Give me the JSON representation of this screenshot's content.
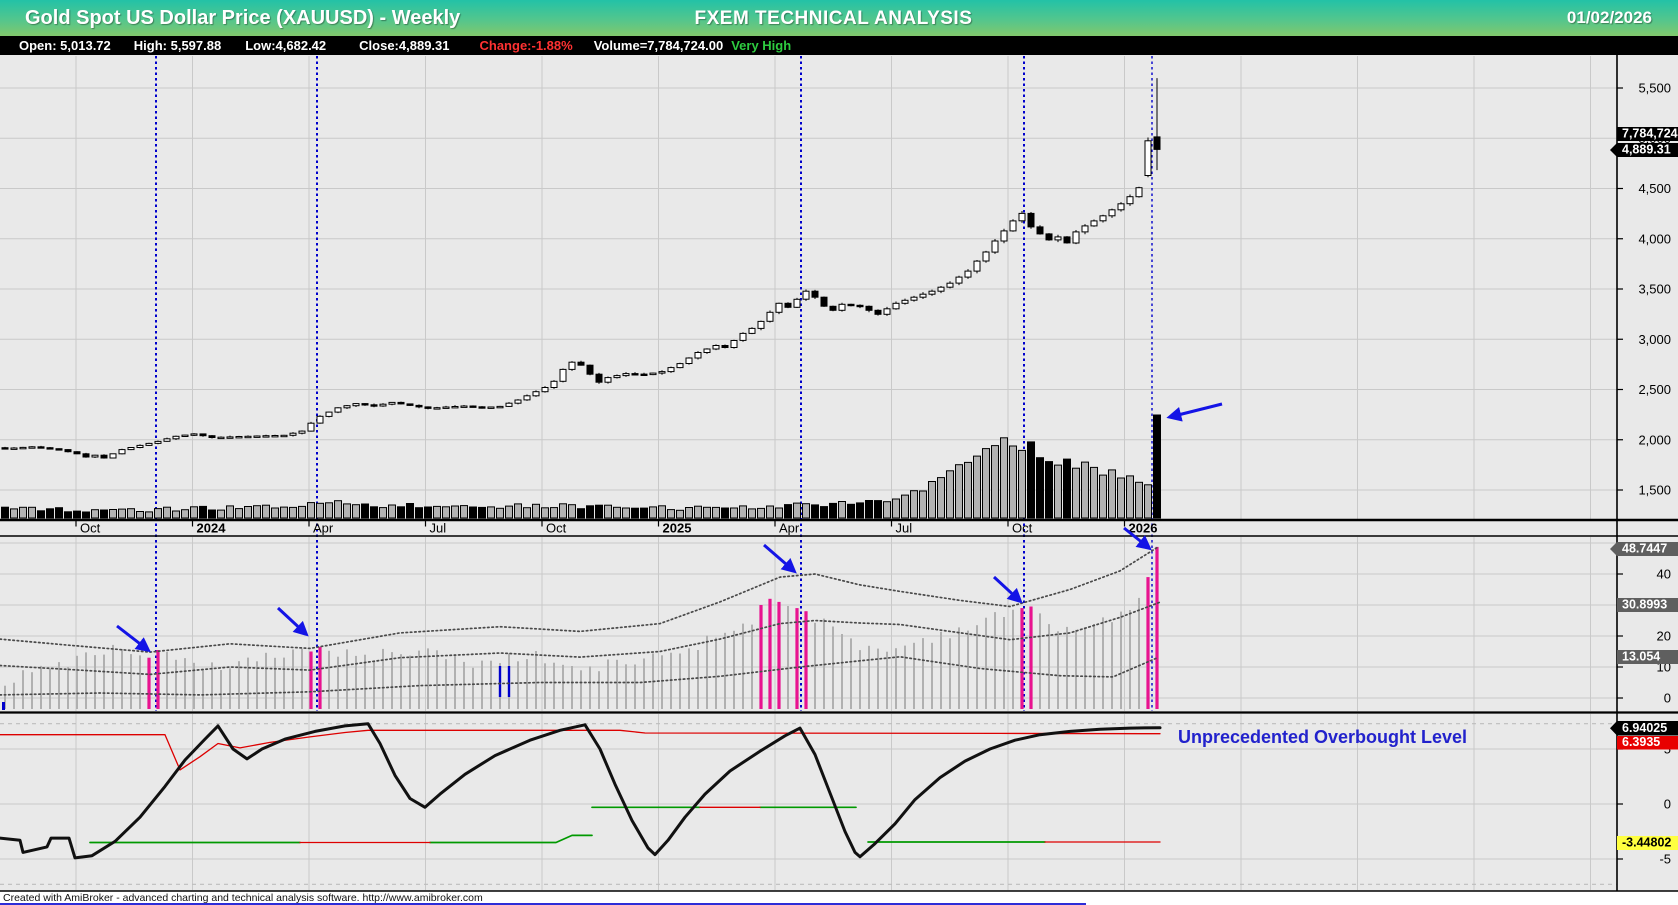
{
  "header": {
    "title": "Gold Spot US Dollar Price (XAUUSD) - Weekly",
    "center_title": "FXEM TECHNICAL ANALYSIS",
    "date": "01/02/2026"
  },
  "quote_bar": {
    "items": [
      {
        "text": "Open: 5,013.72"
      },
      {
        "text": "High: 5,597.88"
      },
      {
        "text": "Low:4,682.42"
      },
      {
        "text": "Close:4,889.31"
      },
      {
        "text": "Change:-1.88%"
      },
      {
        "text": "Volume=7,784,724.00"
      },
      {
        "text": "Very High"
      }
    ]
  },
  "footer": {
    "credit": "Created with AmiBroker - advanced charting and technical analysis software. http://www.amibroker.com"
  },
  "chart_data": {
    "type": "candlestick",
    "title": "Gold Spot US Dollar Price (XAUUSD) - Weekly",
    "x_axis": {
      "labels": [
        "Oct",
        "2024",
        "Apr",
        "Jul",
        "Oct",
        "2025",
        "Apr",
        "Jul",
        "Oct",
        "2026"
      ],
      "bold": [
        false,
        true,
        false,
        false,
        false,
        true,
        false,
        false,
        false,
        true
      ],
      "tick_x": [
        76,
        192.5,
        309,
        425.5,
        542,
        658.5,
        775,
        891.5,
        1008,
        1124.5
      ],
      "grid_step": 116.5,
      "grid_count": 14
    },
    "price_axis": {
      "tick_labels": [
        "5,500",
        "5,000",
        "4,500",
        "4,000",
        "3,500",
        "3,000",
        "2,500",
        "2,000",
        "1,500"
      ],
      "tick_values": [
        5500,
        5000,
        4500,
        4000,
        3500,
        3000,
        2500,
        2000,
        1500
      ],
      "range": [
        1350,
        5850
      ]
    },
    "last_bar": {
      "open": 5013.72,
      "high": 5597.88,
      "low": 4682.42,
      "close": 4889.31,
      "volume": 7784724
    },
    "badges": {
      "volume": "7,784,724",
      "close": "4,889.31",
      "band_upper": "48.7447",
      "band_middle": "30.8993",
      "band_lower": "13.054",
      "osc_main": "6.94025",
      "osc_signal": "6.3935",
      "osc_stop": "-3.44802"
    },
    "price_keypoints_weekly": [
      [
        0,
        1912
      ],
      [
        3,
        1930
      ],
      [
        6,
        1902
      ],
      [
        8,
        1860
      ],
      [
        9,
        1828
      ],
      [
        10,
        1846
      ],
      [
        11,
        1818
      ],
      [
        13,
        1902
      ],
      [
        15,
        1944
      ],
      [
        17,
        1984
      ],
      [
        19,
        2034
      ],
      [
        21,
        2058
      ],
      [
        23,
        2022
      ],
      [
        26,
        2032
      ],
      [
        29,
        2040
      ],
      [
        31,
        2044
      ],
      [
        33,
        2086
      ],
      [
        34,
        2165
      ],
      [
        35,
        2233
      ],
      [
        37,
        2318
      ],
      [
        39,
        2360
      ],
      [
        41,
        2336
      ],
      [
        43,
        2372
      ],
      [
        45,
        2342
      ],
      [
        47,
        2312
      ],
      [
        49,
        2326
      ],
      [
        51,
        2336
      ],
      [
        53,
        2320
      ],
      [
        55,
        2332
      ],
      [
        57,
        2396
      ],
      [
        59,
        2478
      ],
      [
        60,
        2520
      ],
      [
        61,
        2582
      ],
      [
        62,
        2700
      ],
      [
        63,
        2772
      ],
      [
        64,
        2742
      ],
      [
        65,
        2652
      ],
      [
        66,
        2572
      ],
      [
        67,
        2618
      ],
      [
        69,
        2658
      ],
      [
        71,
        2648
      ],
      [
        73,
        2678
      ],
      [
        75,
        2758
      ],
      [
        77,
        2868
      ],
      [
        79,
        2938
      ],
      [
        80,
        2918
      ],
      [
        81,
        2988
      ],
      [
        82,
        3058
      ],
      [
        83,
        3108
      ],
      [
        84,
        3178
      ],
      [
        85,
        3268
      ],
      [
        86,
        3358
      ],
      [
        87,
        3318
      ],
      [
        88,
        3398
      ],
      [
        89,
        3478
      ],
      [
        90,
        3418
      ],
      [
        91,
        3328
      ],
      [
        92,
        3288
      ],
      [
        93,
        3348
      ],
      [
        95,
        3328
      ],
      [
        97,
        3248
      ],
      [
        99,
        3358
      ],
      [
        101,
        3418
      ],
      [
        103,
        3478
      ],
      [
        105,
        3558
      ],
      [
        107,
        3678
      ],
      [
        108,
        3778
      ],
      [
        109,
        3868
      ],
      [
        110,
        3978
      ],
      [
        111,
        4078
      ],
      [
        112,
        4178
      ],
      [
        113,
        4252
      ],
      [
        114,
        4118
      ],
      [
        115,
        4048
      ],
      [
        116,
        3988
      ],
      [
        117,
        4018
      ],
      [
        118,
        3958
      ],
      [
        119,
        4068
      ],
      [
        120,
        4128
      ],
      [
        121,
        4178
      ],
      [
        122,
        4228
      ],
      [
        123,
        4288
      ],
      [
        124,
        4348
      ],
      [
        125,
        4418
      ],
      [
        126,
        4508
      ],
      [
        127,
        4975
      ],
      [
        128,
        4889.31
      ]
    ],
    "volume_keypoints": [
      [
        0,
        9
      ],
      [
        15,
        8
      ],
      [
        30,
        11
      ],
      [
        36,
        16
      ],
      [
        42,
        12
      ],
      [
        60,
        12
      ],
      [
        75,
        10
      ],
      [
        90,
        13
      ],
      [
        98,
        16
      ],
      [
        102,
        28
      ],
      [
        105,
        48
      ],
      [
        108,
        62
      ],
      [
        110,
        74
      ],
      [
        111,
        80
      ],
      [
        112,
        72
      ],
      [
        113,
        68
      ],
      [
        114,
        75
      ],
      [
        115,
        62
      ],
      [
        116,
        57
      ],
      [
        117,
        52
      ],
      [
        118,
        60
      ],
      [
        119,
        48
      ],
      [
        120,
        54
      ],
      [
        121,
        50
      ],
      [
        122,
        44
      ],
      [
        123,
        48
      ],
      [
        124,
        42
      ],
      [
        125,
        40
      ],
      [
        126,
        38
      ],
      [
        127,
        34
      ],
      [
        128,
        103
      ]
    ],
    "signal_lines_x": [
      156,
      317,
      801,
      1024,
      1152
    ],
    "middle_panel": {
      "tick_labels": [
        "40",
        "20",
        "10",
        "0"
      ],
      "tick_values": [
        40,
        20,
        10,
        0
      ],
      "grid_values": [
        0,
        10,
        20,
        30,
        40,
        50
      ],
      "bands_current": {
        "upper": 48.7447,
        "middle": 30.8993,
        "lower": 13.054
      },
      "band_upper": [
        [
          0,
          19
        ],
        [
          70,
          17
        ],
        [
          150,
          14.8
        ],
        [
          230,
          17.5
        ],
        [
          310,
          16
        ],
        [
          400,
          21
        ],
        [
          500,
          23
        ],
        [
          580,
          21.5
        ],
        [
          660,
          24
        ],
        [
          720,
          31
        ],
        [
          780,
          39
        ],
        [
          815,
          40
        ],
        [
          860,
          36.5
        ],
        [
          900,
          34.4
        ],
        [
          960,
          31.5
        ],
        [
          1010,
          29.5
        ],
        [
          1070,
          35
        ],
        [
          1120,
          41
        ],
        [
          1158,
          48.7
        ]
      ],
      "band_middle": [
        [
          0,
          10.5
        ],
        [
          70,
          9.2
        ],
        [
          150,
          7.6
        ],
        [
          230,
          10
        ],
        [
          310,
          9
        ],
        [
          400,
          13
        ],
        [
          500,
          14.5
        ],
        [
          580,
          13.2
        ],
        [
          660,
          15
        ],
        [
          720,
          19
        ],
        [
          780,
          24
        ],
        [
          815,
          25
        ],
        [
          860,
          24.2
        ],
        [
          900,
          23.7
        ],
        [
          1010,
          18.8
        ],
        [
          1070,
          21
        ],
        [
          1120,
          26
        ],
        [
          1160,
          30.9
        ]
      ],
      "band_lower": [
        [
          0,
          1
        ],
        [
          100,
          1.6
        ],
        [
          200,
          1
        ],
        [
          310,
          2
        ],
        [
          420,
          4
        ],
        [
          540,
          5
        ],
        [
          640,
          5
        ],
        [
          720,
          7
        ],
        [
          800,
          10
        ],
        [
          860,
          12
        ],
        [
          900,
          13.3
        ],
        [
          980,
          9.5
        ],
        [
          1060,
          7.2
        ],
        [
          1113,
          6.8
        ],
        [
          1158,
          13.05
        ]
      ],
      "hist_envelope": [
        [
          0,
          5
        ],
        [
          6,
          11
        ],
        [
          12,
          16
        ],
        [
          17,
          15
        ],
        [
          22,
          9
        ],
        [
          28,
          13
        ],
        [
          34,
          16
        ],
        [
          40,
          13
        ],
        [
          46,
          16
        ],
        [
          52,
          11
        ],
        [
          58,
          14
        ],
        [
          64,
          9
        ],
        [
          70,
          12
        ],
        [
          76,
          16
        ],
        [
          82,
          24
        ],
        [
          86,
          30
        ],
        [
          90,
          26
        ],
        [
          94,
          18
        ],
        [
          98,
          15
        ],
        [
          102,
          19
        ],
        [
          106,
          22
        ],
        [
          110,
          26
        ],
        [
          113,
          29
        ],
        [
          116,
          24
        ],
        [
          119,
          22
        ],
        [
          122,
          25
        ],
        [
          125,
          28
        ],
        [
          127,
          33
        ],
        [
          128,
          40
        ]
      ],
      "pink_bars": {
        "16": 13,
        "17": 15.5,
        "34": 15,
        "35": 16.5,
        "84": 30,
        "85": 32,
        "86": 31,
        "88": 29,
        "89": 28,
        "113": 29,
        "114": 29.5,
        "127": 39,
        "128": 48.74
      },
      "blue_marks_x": [
        500,
        509
      ]
    },
    "bottom_panel": {
      "tick_labels": [
        "5",
        "0",
        "-5"
      ],
      "tick_values": [
        5,
        0,
        -5
      ],
      "dashed_levels": [
        7.3,
        -7.3
      ],
      "annotation": "Unprecedented Overbought Level",
      "black_line": [
        [
          0,
          -3.1
        ],
        [
          20,
          -3.3
        ],
        [
          23,
          -4.4
        ],
        [
          47,
          -3.9
        ],
        [
          51,
          -3.1
        ],
        [
          69,
          -3.1
        ],
        [
          75,
          -4.9
        ],
        [
          92,
          -4.7
        ],
        [
          115,
          -3.4
        ],
        [
          140,
          -1.2
        ],
        [
          165,
          1.6
        ],
        [
          185,
          4.0
        ],
        [
          205,
          5.9
        ],
        [
          218,
          7.1
        ],
        [
          233,
          5.0
        ],
        [
          247,
          4.1
        ],
        [
          262,
          5.0
        ],
        [
          285,
          5.9
        ],
        [
          315,
          6.6
        ],
        [
          345,
          7.1
        ],
        [
          368,
          7.3
        ],
        [
          380,
          5.5
        ],
        [
          395,
          2.6
        ],
        [
          410,
          0.5
        ],
        [
          425,
          -0.3
        ],
        [
          440,
          0.9
        ],
        [
          465,
          2.7
        ],
        [
          495,
          4.4
        ],
        [
          530,
          5.8
        ],
        [
          560,
          6.7
        ],
        [
          585,
          7.2
        ],
        [
          600,
          5.0
        ],
        [
          615,
          1.8
        ],
        [
          632,
          -1.5
        ],
        [
          648,
          -4.0
        ],
        [
          655,
          -4.6
        ],
        [
          668,
          -3.3
        ],
        [
          685,
          -1.2
        ],
        [
          705,
          0.9
        ],
        [
          730,
          3.0
        ],
        [
          760,
          4.8
        ],
        [
          785,
          6.2
        ],
        [
          800,
          6.9
        ],
        [
          815,
          4.5
        ],
        [
          830,
          1.0
        ],
        [
          845,
          -2.5
        ],
        [
          855,
          -4.4
        ],
        [
          860,
          -4.8
        ],
        [
          875,
          -3.6
        ],
        [
          895,
          -1.8
        ],
        [
          915,
          0.4
        ],
        [
          940,
          2.4
        ],
        [
          965,
          3.9
        ],
        [
          990,
          5.0
        ],
        [
          1015,
          5.8
        ],
        [
          1040,
          6.3
        ],
        [
          1070,
          6.6
        ],
        [
          1100,
          6.8
        ],
        [
          1130,
          6.9
        ],
        [
          1160,
          6.94
        ]
      ],
      "red_lines": [
        [
          [
            0,
            6.3
          ],
          [
            165,
            6.3
          ],
          [
            180,
            3.1
          ],
          [
            200,
            4.3
          ],
          [
            218,
            5.5
          ],
          [
            240,
            5.1
          ],
          [
            270,
            5.6
          ],
          [
            310,
            6.1
          ],
          [
            345,
            6.5
          ],
          [
            368,
            6.7
          ],
          [
            620,
            6.7
          ],
          [
            645,
            6.45
          ],
          [
            1000,
            6.42
          ],
          [
            1160,
            6.39
          ]
        ],
        [
          [
            300,
            -3.5
          ],
          [
            430,
            -3.5
          ]
        ],
        [
          [
            700,
            -0.3
          ],
          [
            760,
            -0.3
          ]
        ],
        [
          [
            1045,
            -3.45
          ],
          [
            1160,
            -3.45
          ]
        ]
      ],
      "green_lines": [
        [
          [
            90,
            -3.5
          ],
          [
            300,
            -3.5
          ]
        ],
        [
          [
            430,
            -3.5
          ],
          [
            556,
            -3.5
          ],
          [
            572,
            -2.85
          ],
          [
            592,
            -2.85
          ]
        ],
        [
          [
            592,
            -0.3
          ],
          [
            700,
            -0.3
          ]
        ],
        [
          [
            760,
            -0.3
          ],
          [
            856,
            -0.3
          ]
        ],
        [
          [
            868,
            -3.45
          ],
          [
            1045,
            -3.45
          ]
        ]
      ]
    },
    "arrows": [
      {
        "name": "volume-spike-arrow",
        "from": [
          1222,
          404
        ],
        "to": [
          1170,
          417
        ]
      },
      {
        "name": "signal-arrow-1",
        "from": [
          117,
          626
        ],
        "to": [
          148,
          650
        ]
      },
      {
        "name": "signal-arrow-2",
        "from": [
          278,
          608
        ],
        "to": [
          306,
          634
        ]
      },
      {
        "name": "signal-arrow-3",
        "from": [
          764,
          545
        ],
        "to": [
          794,
          571
        ]
      },
      {
        "name": "signal-arrow-4",
        "from": [
          994,
          577
        ],
        "to": [
          1020,
          601
        ]
      },
      {
        "name": "signal-arrow-5",
        "from": [
          1124,
          528
        ],
        "to": [
          1149,
          548
        ]
      }
    ],
    "colors": {
      "panel_bg": "#e9e9e9",
      "grid": "#c9c9c9",
      "candle_up": "#ffffff",
      "candle_down": "#000000",
      "volume_up": "#b3b3b3",
      "signal_line_blue": "#0000cc",
      "arrow_blue": "#1414e6",
      "pink": "#e8138f",
      "hist_gray": "#b0b0b0",
      "band_dot": "#4a4a4a",
      "badge_gray": "#5f5f5f",
      "badge_red": "#e80000",
      "badge_yellow": "#ffff40",
      "osc_black": "#111111",
      "osc_red": "#dd0000",
      "osc_green": "#009900",
      "annotation_blue": "#2222cc",
      "change_red": "#ff3232",
      "very_high_green": "#2ecc40"
    }
  }
}
